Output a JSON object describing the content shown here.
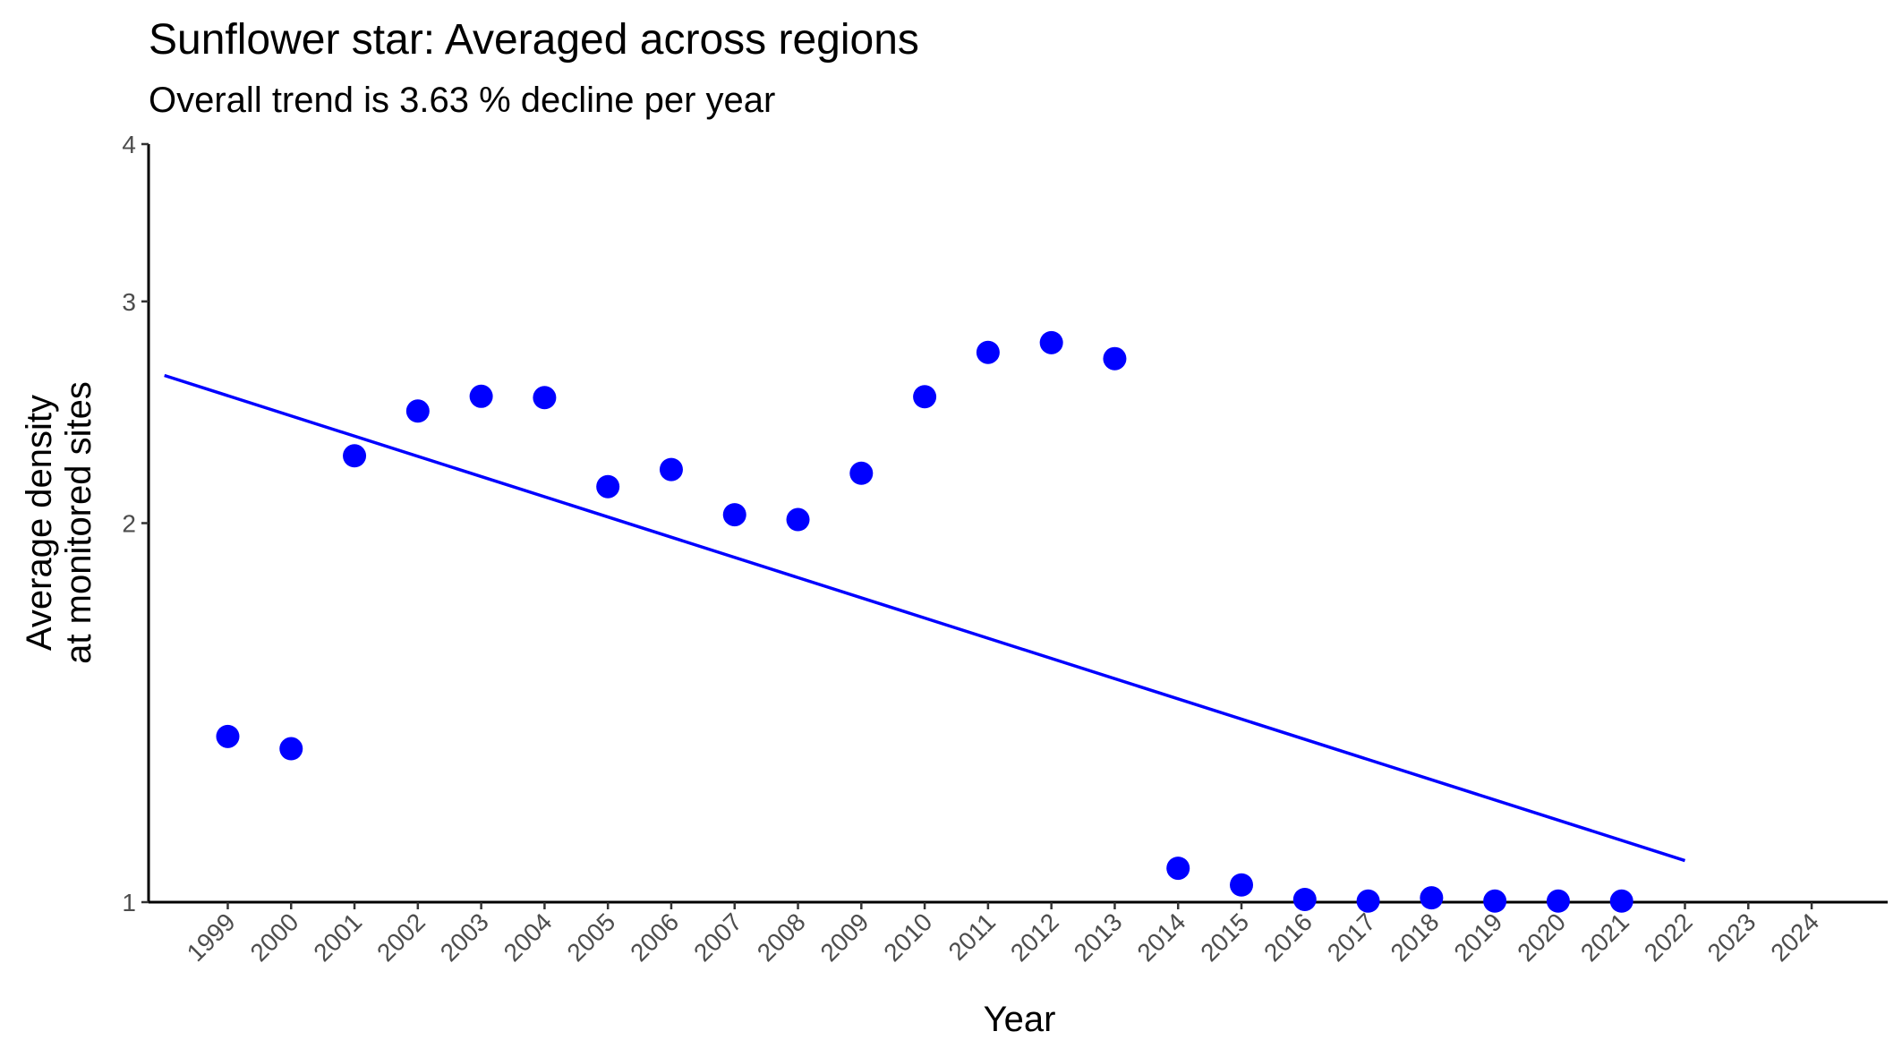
{
  "chart_data": {
    "type": "scatter",
    "title": "Sunflower star: Averaged across regions",
    "subtitle": "Overall trend is 3.63 % decline per year",
    "xlabel": "Year",
    "ylabel": [
      "Average density",
      "at monitored sites"
    ],
    "xlim": [
      1997.75,
      2025.2
    ],
    "xticks": [
      1999,
      2000,
      2001,
      2002,
      2003,
      2004,
      2005,
      2006,
      2007,
      2008,
      2009,
      2010,
      2011,
      2012,
      2013,
      2014,
      2015,
      2016,
      2017,
      2018,
      2019,
      2020,
      2021,
      2022,
      2023,
      2024
    ],
    "ylim": [
      1,
      4
    ],
    "yticks": [
      1,
      2,
      3,
      4
    ],
    "yscale": "log",
    "grid": false,
    "series": [
      {
        "type": "scatter",
        "color": "#0000ff",
        "x": [
          1999,
          2000,
          2001,
          2002,
          2003,
          2004,
          2005,
          2006,
          2007,
          2008,
          2009,
          2010,
          2011,
          2012,
          2013,
          2014,
          2015,
          2016,
          2017,
          2018,
          2019,
          2020,
          2021
        ],
        "values": [
          1.354,
          1.324,
          2.262,
          2.455,
          2.522,
          2.516,
          2.138,
          2.206,
          2.031,
          2.013,
          2.191,
          2.52,
          2.733,
          2.782,
          2.702,
          1.064,
          1.032,
          1.005,
          1.002,
          1.008,
          1.002,
          1.002,
          1.002
        ]
      },
      {
        "type": "line",
        "color": "#0000ff",
        "x": [
          1998,
          2022
        ],
        "values": [
          2.62,
          1.079
        ]
      }
    ]
  }
}
